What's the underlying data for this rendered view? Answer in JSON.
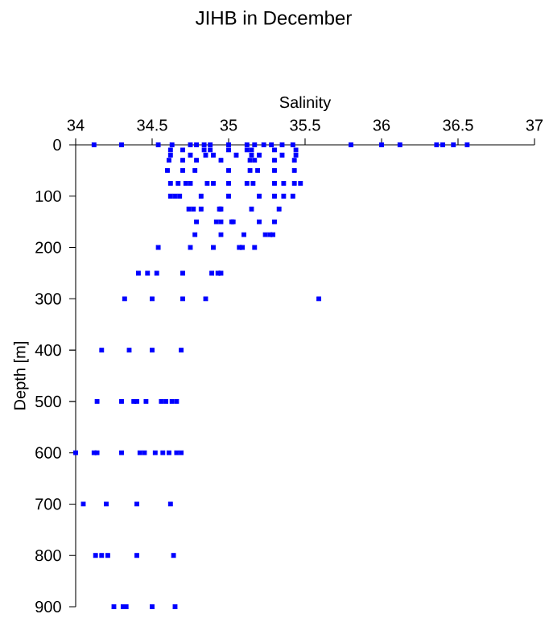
{
  "chart_data": {
    "type": "scatter",
    "title": "JIHB in December",
    "xlabel": "Salinity",
    "ylabel": "Depth [m]",
    "xlim": [
      34,
      37
    ],
    "xticks": [
      34,
      34.5,
      35,
      35.5,
      36,
      36.5,
      37
    ],
    "ylim": [
      900,
      0
    ],
    "yticks": [
      0,
      100,
      200,
      300,
      400,
      500,
      600,
      700,
      800,
      900
    ],
    "grid": false,
    "marker": "square",
    "series": [
      {
        "color": "#0000ff",
        "x": [
          34.12,
          34.3,
          34.54,
          34.63,
          34.75,
          34.79,
          34.84,
          34.88,
          35.0,
          35.12,
          35.17,
          35.23,
          35.28,
          35.35,
          35.42,
          35.8,
          36.0,
          36.12,
          36.36,
          36.4,
          36.47,
          36.56,
          34.62,
          34.7,
          34.84,
          34.88,
          35.0,
          35.12,
          35.15,
          35.3,
          35.44,
          34.62,
          34.75,
          34.85,
          34.9,
          35.05,
          35.15,
          35.2,
          35.35,
          35.44,
          34.61,
          34.7,
          34.79,
          34.95,
          35.14,
          35.17,
          35.3,
          35.43,
          34.6,
          34.7,
          34.78,
          35.0,
          35.14,
          35.19,
          35.3,
          35.43,
          34.62,
          34.67,
          34.72,
          34.75,
          34.86,
          34.9,
          35.0,
          35.12,
          35.16,
          35.3,
          35.36,
          35.43,
          35.47,
          34.62,
          34.65,
          34.68,
          34.82,
          35.0,
          35.2,
          35.3,
          35.36,
          35.42,
          34.74,
          34.77,
          34.82,
          34.94,
          34.95,
          35.15,
          35.33,
          34.79,
          34.92,
          34.95,
          35.02,
          35.03,
          35.2,
          35.3,
          34.78,
          34.95,
          35.1,
          35.24,
          35.27,
          35.29,
          34.54,
          34.75,
          34.9,
          35.07,
          35.09,
          35.17,
          34.41,
          34.47,
          34.53,
          34.7,
          34.89,
          34.93,
          34.95,
          34.32,
          34.5,
          34.7,
          34.85,
          35.59,
          34.17,
          34.35,
          34.5,
          34.69,
          34.14,
          34.3,
          34.38,
          34.4,
          34.46,
          34.56,
          34.59,
          34.63,
          34.66,
          34.0,
          34.12,
          34.14,
          34.3,
          34.42,
          34.45,
          34.52,
          34.57,
          34.61,
          34.66,
          34.69,
          34.05,
          34.2,
          34.4,
          34.62,
          34.13,
          34.17,
          34.21,
          34.4,
          34.64,
          34.25,
          34.31,
          34.33,
          34.5,
          34.65
        ],
        "values": [
          0,
          0,
          0,
          0,
          0,
          0,
          0,
          0,
          0,
          0,
          0,
          0,
          0,
          0,
          0,
          0,
          0,
          0,
          0,
          0,
          0,
          0,
          10,
          10,
          10,
          10,
          10,
          10,
          10,
          10,
          10,
          20,
          20,
          20,
          20,
          20,
          20,
          20,
          20,
          20,
          30,
          30,
          30,
          30,
          30,
          30,
          30,
          30,
          50,
          50,
          50,
          50,
          50,
          50,
          50,
          50,
          75,
          75,
          75,
          75,
          75,
          75,
          75,
          75,
          75,
          75,
          75,
          75,
          75,
          100,
          100,
          100,
          100,
          100,
          100,
          100,
          100,
          100,
          125,
          125,
          125,
          125,
          125,
          125,
          125,
          150,
          150,
          150,
          150,
          150,
          150,
          150,
          175,
          175,
          175,
          175,
          175,
          175,
          200,
          200,
          200,
          200,
          200,
          200,
          250,
          250,
          250,
          250,
          250,
          250,
          250,
          300,
          300,
          300,
          300,
          300,
          400,
          400,
          400,
          400,
          500,
          500,
          500,
          500,
          500,
          500,
          500,
          500,
          500,
          600,
          600,
          600,
          600,
          600,
          600,
          600,
          600,
          600,
          600,
          600,
          700,
          700,
          700,
          700,
          800,
          800,
          800,
          800,
          800,
          900,
          900,
          900,
          900,
          900
        ]
      }
    ]
  }
}
